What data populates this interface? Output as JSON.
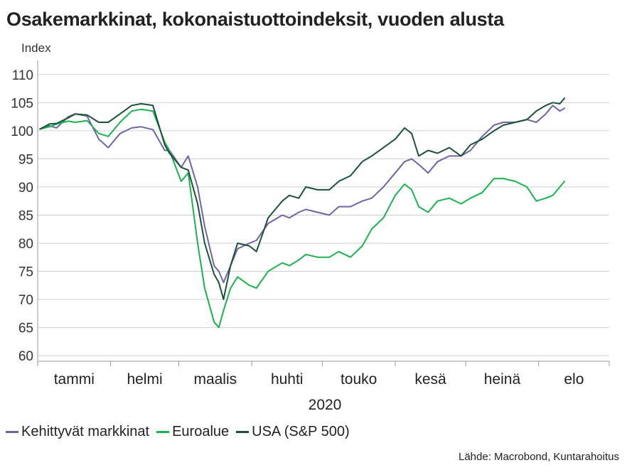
{
  "title": "Osakemarkkinat, kokonaistuottoindeksit, vuoden alusta",
  "source": "Lähde: Macrobond, Kuntarahoitus",
  "chart_data": {
    "type": "line",
    "ylabel": "Index",
    "xlabel": "2020",
    "ylim": [
      59,
      112
    ],
    "yticks": [
      60,
      65,
      70,
      75,
      80,
      85,
      90,
      95,
      100,
      105,
      110
    ],
    "grid": true,
    "legend_position": "bottom",
    "months": [
      "tammi",
      "helmi",
      "maalis",
      "huhti",
      "touko",
      "kesä",
      "heinä",
      "elo"
    ],
    "month_starts": [
      "2020-01-01",
      "2020-02-01",
      "2020-03-01",
      "2020-04-01",
      "2020-05-01",
      "2020-06-01",
      "2020-07-01",
      "2020-08-01",
      "2020-08-31"
    ],
    "x": [
      "2020-01-02",
      "2020-01-06",
      "2020-01-09",
      "2020-01-14",
      "2020-01-17",
      "2020-01-22",
      "2020-01-27",
      "2020-01-31",
      "2020-02-05",
      "2020-02-10",
      "2020-02-14",
      "2020-02-19",
      "2020-02-24",
      "2020-02-26",
      "2020-03-02",
      "2020-03-05",
      "2020-03-09",
      "2020-03-12",
      "2020-03-16",
      "2020-03-18",
      "2020-03-20",
      "2020-03-23",
      "2020-03-26",
      "2020-03-31",
      "2020-04-03",
      "2020-04-08",
      "2020-04-14",
      "2020-04-17",
      "2020-04-21",
      "2020-04-24",
      "2020-04-29",
      "2020-05-04",
      "2020-05-08",
      "2020-05-13",
      "2020-05-18",
      "2020-05-22",
      "2020-05-27",
      "2020-06-01",
      "2020-06-05",
      "2020-06-08",
      "2020-06-11",
      "2020-06-15",
      "2020-06-19",
      "2020-06-24",
      "2020-06-29",
      "2020-07-03",
      "2020-07-08",
      "2020-07-13",
      "2020-07-17",
      "2020-07-22",
      "2020-07-27",
      "2020-07-31",
      "2020-08-04",
      "2020-08-07",
      "2020-08-10",
      "2020-08-12"
    ],
    "series": [
      {
        "name": "Kehittyvät markkinat",
        "color": "#6f64a8",
        "values": [
          100.3,
          100.9,
          100.5,
          102.5,
          103.0,
          102.6,
          98.5,
          97.0,
          99.5,
          100.5,
          100.7,
          100.2,
          96.5,
          96.5,
          93.5,
          95.5,
          90.0,
          83.0,
          76.0,
          75.0,
          73.0,
          76.0,
          79.0,
          80.0,
          80.5,
          83.5,
          85.0,
          84.5,
          85.5,
          86.0,
          85.5,
          85.0,
          86.5,
          86.5,
          87.5,
          88.0,
          90.0,
          92.5,
          94.5,
          95.0,
          94.0,
          92.5,
          94.5,
          95.5,
          95.5,
          96.5,
          99.0,
          101.0,
          101.5,
          101.5,
          102.0,
          101.5,
          103.0,
          104.5,
          103.5,
          104.0
        ]
      },
      {
        "name": "Euroalue",
        "color": "#1ab34e",
        "values": [
          100.3,
          100.7,
          101.2,
          101.7,
          101.5,
          101.8,
          99.5,
          99.0,
          101.5,
          103.5,
          103.8,
          103.5,
          98.0,
          96.5,
          91.0,
          92.5,
          80.0,
          72.0,
          66.0,
          65.0,
          68.0,
          72.0,
          74.0,
          72.5,
          72.0,
          75.0,
          76.5,
          76.0,
          77.0,
          78.0,
          77.5,
          77.5,
          78.5,
          77.5,
          79.5,
          82.5,
          84.5,
          88.5,
          90.5,
          89.5,
          86.5,
          85.5,
          87.5,
          88.0,
          87.0,
          88.0,
          89.0,
          91.5,
          91.5,
          91.0,
          90.0,
          87.5,
          88.0,
          88.5,
          90.0,
          91.0
        ]
      },
      {
        "name": "USA (S&P 500)",
        "color": "#1b5238",
        "values": [
          100.3,
          101.2,
          101.3,
          102.3,
          103.0,
          102.8,
          101.5,
          101.5,
          103.0,
          104.5,
          104.8,
          104.5,
          97.5,
          96.0,
          93.5,
          93.0,
          87.0,
          80.0,
          74.5,
          73.0,
          70.0,
          76.0,
          80.0,
          79.5,
          78.5,
          84.5,
          87.5,
          88.5,
          88.0,
          90.0,
          89.5,
          89.5,
          91.0,
          92.0,
          94.5,
          95.5,
          97.0,
          98.5,
          100.5,
          99.5,
          95.5,
          96.5,
          96.0,
          97.0,
          95.5,
          97.5,
          98.5,
          100.0,
          101.0,
          101.5,
          102.0,
          103.5,
          104.5,
          105.0,
          104.8,
          105.8
        ]
      }
    ]
  }
}
